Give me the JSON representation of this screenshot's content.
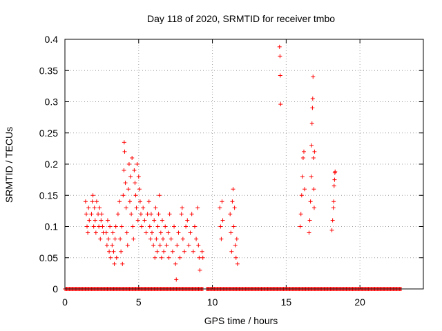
{
  "chart_data": {
    "type": "scatter",
    "title": "Day 118 of 2020, SRMTID for receiver tmbo",
    "xlabel": "GPS time / hours",
    "ylabel": "SRMTID / TECUs",
    "xlim": [
      0,
      24.3
    ],
    "ylim": [
      0,
      0.4
    ],
    "xticks": [
      0,
      5,
      10,
      15,
      20
    ],
    "xtick_labels": [
      "0",
      "5",
      "10",
      "15",
      "20"
    ],
    "yticks": [
      0,
      0.05,
      0.1,
      0.15,
      0.2,
      0.25,
      0.3,
      0.35,
      0.4
    ],
    "ytick_labels": [
      "0",
      "0.05",
      "0.1",
      "0.15",
      "0.2",
      "0.25",
      "0.3",
      "0.35",
      "0.4"
    ],
    "grid": true,
    "marker": "+",
    "color": "#ff0000",
    "series": [
      {
        "name": "SRMTID",
        "points": [
          [
            1.4,
            0.14
          ],
          [
            1.45,
            0.12
          ],
          [
            1.5,
            0.1
          ],
          [
            1.55,
            0.09
          ],
          [
            1.6,
            0.13
          ],
          [
            1.65,
            0.11
          ],
          [
            1.8,
            0.12
          ],
          [
            1.85,
            0.14
          ],
          [
            1.9,
            0.15
          ],
          [
            1.95,
            0.1
          ],
          [
            2.0,
            0.13
          ],
          [
            2.05,
            0.11
          ],
          [
            2.1,
            0.09
          ],
          [
            2.15,
            0.14
          ],
          [
            2.25,
            0.12
          ],
          [
            2.3,
            0.1
          ],
          [
            2.35,
            0.13
          ],
          [
            2.4,
            0.08
          ],
          [
            2.45,
            0.11
          ],
          [
            2.5,
            0.12
          ],
          [
            2.55,
            0.1
          ],
          [
            2.6,
            0.09
          ],
          [
            2.8,
            0.09
          ],
          [
            2.85,
            0.07
          ],
          [
            2.9,
            0.11
          ],
          [
            2.95,
            0.08
          ],
          [
            3.0,
            0.06
          ],
          [
            3.05,
            0.1
          ],
          [
            3.1,
            0.05
          ],
          [
            3.2,
            0.07
          ],
          [
            3.25,
            0.09
          ],
          [
            3.3,
            0.06
          ],
          [
            3.35,
            0.04
          ],
          [
            3.4,
            0.08
          ],
          [
            3.45,
            0.1
          ],
          [
            3.5,
            0.05
          ],
          [
            3.6,
            0.12
          ],
          [
            3.7,
            0.14
          ],
          [
            3.75,
            0.08
          ],
          [
            3.8,
            0.06
          ],
          [
            3.85,
            0.1
          ],
          [
            3.9,
            0.04
          ],
          [
            3.95,
            0.15
          ],
          [
            4.0,
            0.19
          ],
          [
            4.02,
            0.235
          ],
          [
            4.05,
            0.22
          ],
          [
            4.1,
            0.17
          ],
          [
            4.15,
            0.13
          ],
          [
            4.2,
            0.09
          ],
          [
            4.25,
            0.07
          ],
          [
            4.3,
            0.16
          ],
          [
            4.35,
            0.2
          ],
          [
            4.4,
            0.14
          ],
          [
            4.45,
            0.18
          ],
          [
            4.5,
            0.12
          ],
          [
            4.55,
            0.21
          ],
          [
            4.6,
            0.1
          ],
          [
            4.65,
            0.08
          ],
          [
            4.7,
            0.19
          ],
          [
            4.75,
            0.17
          ],
          [
            4.8,
            0.15
          ],
          [
            4.85,
            0.13
          ],
          [
            4.9,
            0.2
          ],
          [
            4.95,
            0.11
          ],
          [
            5.0,
            0.18
          ],
          [
            5.05,
            0.16
          ],
          [
            5.1,
            0.14
          ],
          [
            5.15,
            0.12
          ],
          [
            5.2,
            0.1
          ],
          [
            5.3,
            0.13
          ],
          [
            5.4,
            0.11
          ],
          [
            5.5,
            0.09
          ],
          [
            5.6,
            0.12
          ],
          [
            5.7,
            0.14
          ],
          [
            5.75,
            0.1
          ],
          [
            5.8,
            0.08
          ],
          [
            5.85,
            0.12
          ],
          [
            5.9,
            0.09
          ],
          [
            6.0,
            0.07
          ],
          [
            6.05,
            0.11
          ],
          [
            6.1,
            0.05
          ],
          [
            6.15,
            0.13
          ],
          [
            6.2,
            0.08
          ],
          [
            6.25,
            0.06
          ],
          [
            6.3,
            0.1
          ],
          [
            6.35,
            0.12
          ],
          [
            6.4,
            0.15
          ],
          [
            6.45,
            0.07
          ],
          [
            6.5,
            0.09
          ],
          [
            6.55,
            0.05
          ],
          [
            6.6,
            0.11
          ],
          [
            6.65,
            0.08
          ],
          [
            6.7,
            0.06
          ],
          [
            6.8,
            0.1
          ],
          [
            6.9,
            0.07
          ],
          [
            7.0,
            0.09
          ],
          [
            7.05,
            0.05
          ],
          [
            7.1,
            0.12
          ],
          [
            7.2,
            0.08
          ],
          [
            7.3,
            0.06
          ],
          [
            7.4,
            0.1
          ],
          [
            7.5,
            0.04
          ],
          [
            7.55,
            0.015
          ],
          [
            7.6,
            0.07
          ],
          [
            7.7,
            0.09
          ],
          [
            7.8,
            0.05
          ],
          [
            7.9,
            0.12
          ],
          [
            7.95,
            0.13
          ],
          [
            8.0,
            0.08
          ],
          [
            8.1,
            0.06
          ],
          [
            8.2,
            0.1
          ],
          [
            8.3,
            0.11
          ],
          [
            8.4,
            0.07
          ],
          [
            8.5,
            0.09
          ],
          [
            8.6,
            0.12
          ],
          [
            8.7,
            0.06
          ],
          [
            8.8,
            0.1
          ],
          [
            8.9,
            0.08
          ],
          [
            9.0,
            0.13
          ],
          [
            9.05,
            0.07
          ],
          [
            9.1,
            0.05
          ],
          [
            9.15,
            0.03
          ],
          [
            9.3,
            0.06
          ],
          [
            9.35,
            0.05
          ],
          [
            10.5,
            0.13
          ],
          [
            10.55,
            0.1
          ],
          [
            10.6,
            0.08
          ],
          [
            10.65,
            0.14
          ],
          [
            10.7,
            0.11
          ],
          [
            11.2,
            0.12
          ],
          [
            11.25,
            0.09
          ],
          [
            11.3,
            0.06
          ],
          [
            11.35,
            0.14
          ],
          [
            11.4,
            0.16
          ],
          [
            11.45,
            0.1
          ],
          [
            11.5,
            0.13
          ],
          [
            11.55,
            0.07
          ],
          [
            11.6,
            0.05
          ],
          [
            11.65,
            0.08
          ],
          [
            11.7,
            0.04
          ],
          [
            14.55,
            0.388
          ],
          [
            14.58,
            0.373
          ],
          [
            14.6,
            0.342
          ],
          [
            14.62,
            0.296
          ],
          [
            15.95,
            0.1
          ],
          [
            16.0,
            0.12
          ],
          [
            16.05,
            0.15
          ],
          [
            16.1,
            0.18
          ],
          [
            16.15,
            0.21
          ],
          [
            16.2,
            0.22
          ],
          [
            16.25,
            0.16
          ],
          [
            16.55,
            0.09
          ],
          [
            16.6,
            0.11
          ],
          [
            16.65,
            0.14
          ],
          [
            16.7,
            0.18
          ],
          [
            16.72,
            0.23
          ],
          [
            16.75,
            0.265
          ],
          [
            16.78,
            0.29
          ],
          [
            16.8,
            0.305
          ],
          [
            16.82,
            0.34
          ],
          [
            16.85,
            0.21
          ],
          [
            16.88,
            0.16
          ],
          [
            16.9,
            0.13
          ],
          [
            16.92,
            0.22
          ],
          [
            18.1,
            0.094
          ],
          [
            18.15,
            0.11
          ],
          [
            18.2,
            0.13
          ],
          [
            18.22,
            0.14
          ],
          [
            18.25,
            0.165
          ],
          [
            18.28,
            0.175
          ],
          [
            18.3,
            0.186
          ],
          [
            18.32,
            0.188
          ]
        ]
      }
    ],
    "zero_band": [
      [
        0,
        9.25
      ],
      [
        9.3,
        9.4
      ],
      [
        9.6,
        22.8
      ]
    ]
  }
}
